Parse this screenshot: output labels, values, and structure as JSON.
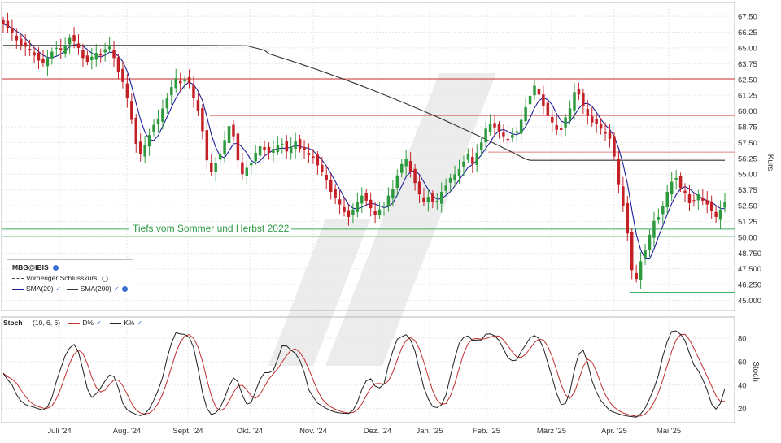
{
  "chart_data": [
    {
      "type": "candlestick",
      "symbol_label": "MBG@IBIS",
      "ylabel": "Kurs",
      "ylim": [
        44.2,
        68.6
      ],
      "y_ticks": [
        "67.50",
        "66.25",
        "65.00",
        "63.75",
        "62.50",
        "61.25",
        "60.00",
        "58.75",
        "57.50",
        "56.25",
        "55.00",
        "53.75",
        "52.50",
        "51.25",
        "50.00",
        "48.750",
        "47.500",
        "46.250",
        "45.000"
      ],
      "x_ticks": [
        "Juli '24",
        "Aug. '24",
        "Sept. '24",
        "Okt. '24",
        "Nov. '24",
        "Dez. '24",
        "Jan. '25",
        "Feb. '25",
        "März '25",
        "Apr. '25",
        "Mai '25"
      ],
      "close": [
        66.9,
        66.6,
        66.2,
        65.6,
        65.2,
        65.1,
        64.8,
        64.4,
        64.0,
        63.8,
        64.2,
        64.7,
        65.0,
        64.8,
        65.2,
        65.8,
        65.5,
        65.0,
        64.2,
        63.9,
        64.3,
        64.6,
        64.4,
        64.9,
        65.1,
        64.2,
        63.1,
        62.3,
        61.0,
        59.3,
        57.4,
        56.6,
        57.3,
        58.1,
        58.9,
        59.4,
        60.2,
        61.0,
        61.9,
        62.6,
        62.2,
        62.5,
        62.2,
        61.0,
        60.0,
        58.4,
        56.1,
        55.2,
        55.9,
        56.6,
        57.7,
        58.8,
        58.0,
        56.1,
        55.0,
        55.5,
        55.9,
        56.7,
        57.2,
        56.9,
        56.7,
        57.0,
        57.3,
        57.4,
        56.8,
        57.2,
        57.6,
        57.0,
        56.9,
        56.5,
        56.3,
        55.7,
        55.2,
        54.5,
        53.6,
        53.1,
        52.6,
        52.0,
        51.6,
        52.2,
        52.8,
        53.3,
        52.9,
        52.3,
        51.8,
        52.2,
        52.5,
        53.3,
        53.8,
        54.9,
        55.8,
        56.2,
        55.2,
        54.3,
        53.4,
        52.8,
        53.2,
        52.8,
        52.9,
        53.6,
        54.1,
        54.7,
        55.0,
        55.4,
        56.0,
        56.6,
        55.8,
        56.7,
        57.5,
        58.6,
        59.0,
        58.7,
        58.4,
        58.0,
        57.7,
        58.1,
        58.4,
        59.3,
        60.3,
        61.2,
        62.0,
        61.3,
        60.4,
        59.6,
        59.1,
        58.5,
        58.5,
        59.5,
        60.2,
        61.5,
        61.3,
        60.4,
        59.6,
        59.1,
        59.0,
        58.6,
        58.2,
        57.8,
        56.4,
        54.2,
        52.5,
        50.3,
        47.4,
        46.7,
        48.1,
        49.0,
        50.2,
        51.3,
        51.6,
        52.5,
        53.6,
        54.4,
        54.7,
        53.9,
        53.5,
        52.7,
        52.9,
        53.4,
        52.9,
        52.6,
        52.1,
        51.6,
        52.2,
        52.8
      ],
      "ma": [
        {
          "name": "SMA(20)",
          "color": "#1f1f9a"
        },
        {
          "name": "SMA(200)",
          "color": "#333333"
        }
      ],
      "legend": [
        {
          "label": "Vorheriger Schlusskurs",
          "style": "dashed",
          "color": "#444444"
        },
        {
          "label": "SMA(20)",
          "style": "solid",
          "color": "#1f1f9a"
        },
        {
          "label": "SMA(200)",
          "style": "solid",
          "color": "#333333"
        }
      ],
      "hlines": [
        {
          "value": 62.55,
          "color": "#c83232"
        },
        {
          "value": 59.65,
          "color": "#c83232"
        },
        {
          "value": 56.75,
          "color": "#e08080"
        },
        {
          "value": 50.65,
          "color": "#3fae5a"
        },
        {
          "value": 50.05,
          "color": "#3fae5a"
        },
        {
          "value": 45.65,
          "color": "#3fae5a"
        }
      ],
      "annotation": "Tiefs vom Sommer und Herbst 2022",
      "colors": {
        "up": "#2e9a3e",
        "down": "#c42127"
      }
    },
    {
      "type": "line",
      "title": "Stoch",
      "params": "(10, 6, 6)",
      "ylabel": "Stoch",
      "ylim": [
        8,
        98
      ],
      "y_ticks": [
        "80",
        "60",
        "40",
        "20"
      ],
      "series": [
        {
          "name": "D%",
          "color": "#c03030"
        },
        {
          "name": "K%",
          "color": "#202020"
        }
      ]
    }
  ]
}
